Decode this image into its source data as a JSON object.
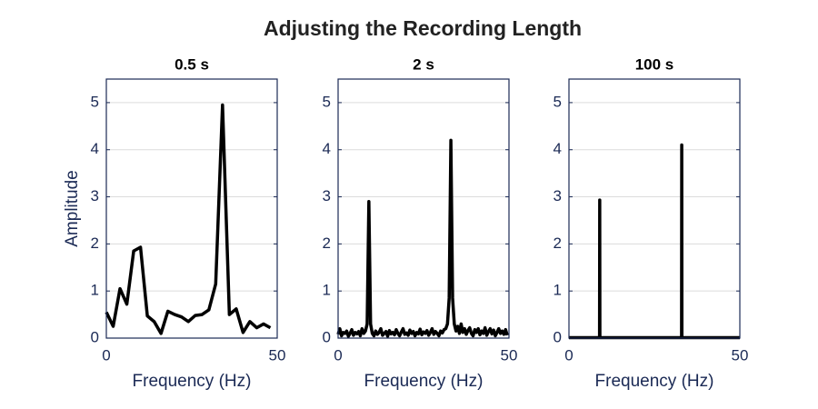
{
  "title": "Adjusting the Recording Length",
  "chart_data": [
    {
      "type": "line",
      "title": "0.5 s",
      "xlabel": "Frequency (Hz)",
      "ylabel": "Amplitude",
      "x": [
        0,
        2,
        4,
        6,
        8,
        10,
        12,
        14,
        16,
        18,
        20,
        22,
        24,
        26,
        28,
        30,
        32,
        34,
        36,
        38,
        40,
        42,
        44,
        46,
        48
      ],
      "values": [
        0.55,
        0.25,
        1.05,
        0.72,
        1.85,
        1.93,
        0.47,
        0.35,
        0.1,
        0.57,
        0.5,
        0.45,
        0.35,
        0.48,
        0.5,
        0.6,
        1.15,
        4.95,
        0.5,
        0.62,
        0.12,
        0.35,
        0.22,
        0.3,
        0.22
      ],
      "color": "#000000",
      "xlim": [
        0,
        50
      ],
      "ylim": [
        0,
        5.5
      ],
      "xticks": [
        0,
        50
      ],
      "yticks": [
        0,
        1,
        2,
        3,
        4,
        5
      ],
      "grid": true
    },
    {
      "type": "line",
      "title": "2 s",
      "xlabel": "Frequency (Hz)",
      "x": [
        0,
        0.5,
        1,
        1.5,
        2,
        2.5,
        3,
        3.5,
        4,
        4.5,
        5,
        5.5,
        6,
        6.5,
        7,
        7.5,
        8,
        8.5,
        9,
        9.5,
        10,
        10.5,
        11,
        11.5,
        12,
        12.5,
        13,
        13.5,
        14,
        14.5,
        15,
        15.5,
        16,
        16.5,
        17,
        17.5,
        18,
        18.5,
        19,
        19.5,
        20,
        20.5,
        21,
        21.5,
        22,
        22.5,
        23,
        23.5,
        24,
        24.5,
        25,
        25.5,
        26,
        26.5,
        27,
        27.5,
        28,
        28.5,
        29,
        29.5,
        30,
        30.5,
        31,
        31.5,
        32,
        32.5,
        33,
        33.5,
        34,
        34.5,
        35,
        35.5,
        36,
        36.5,
        37,
        37.5,
        38,
        38.5,
        39,
        39.5,
        40,
        40.5,
        41,
        41.5,
        42,
        42.5,
        43,
        43.5,
        44,
        44.5,
        45,
        45.5,
        46,
        46.5,
        47,
        47.5,
        48,
        48.5,
        49,
        49.5
      ],
      "values": [
        0.08,
        0.2,
        0.05,
        0.12,
        0.1,
        0.15,
        0.04,
        0.1,
        0.18,
        0.06,
        0.12,
        0.09,
        0.14,
        0.05,
        0.2,
        0.1,
        0.15,
        0.3,
        2.9,
        0.3,
        0.1,
        0.05,
        0.15,
        0.08,
        0.12,
        0.2,
        0.06,
        0.1,
        0.14,
        0.04,
        0.16,
        0.09,
        0.12,
        0.07,
        0.18,
        0.1,
        0.05,
        0.13,
        0.2,
        0.08,
        0.11,
        0.06,
        0.17,
        0.1,
        0.14,
        0.05,
        0.12,
        0.09,
        0.19,
        0.07,
        0.13,
        0.1,
        0.16,
        0.06,
        0.12,
        0.2,
        0.08,
        0.14,
        0.1,
        0.05,
        0.15,
        0.11,
        0.18,
        0.2,
        0.3,
        0.85,
        4.2,
        0.85,
        0.3,
        0.15,
        0.25,
        0.1,
        0.3,
        0.12,
        0.2,
        0.08,
        0.16,
        0.22,
        0.1,
        0.05,
        0.18,
        0.12,
        0.2,
        0.07,
        0.15,
        0.1,
        0.22,
        0.06,
        0.14,
        0.2,
        0.09,
        0.17,
        0.05,
        0.12,
        0.2,
        0.1,
        0.15,
        0.08,
        0.18,
        0.06
      ],
      "color": "#000000",
      "xlim": [
        0,
        50
      ],
      "ylim": [
        0,
        5.5
      ],
      "xticks": [
        0,
        50
      ],
      "yticks": [
        0,
        1,
        2,
        3,
        4,
        5
      ],
      "grid": true
    },
    {
      "type": "line",
      "title": "100 s",
      "xlabel": "Frequency (Hz)",
      "x": [
        0,
        8.95,
        9,
        9.05,
        32.95,
        33,
        33.05,
        50
      ],
      "values": [
        0.01,
        0.01,
        2.93,
        0.01,
        0.01,
        4.1,
        0.01,
        0.01
      ],
      "color": "#000000",
      "xlim": [
        0,
        50
      ],
      "ylim": [
        0,
        5.5
      ],
      "xticks": [
        0,
        50
      ],
      "yticks": [
        0,
        1,
        2,
        3,
        4,
        5
      ],
      "grid": true
    }
  ]
}
